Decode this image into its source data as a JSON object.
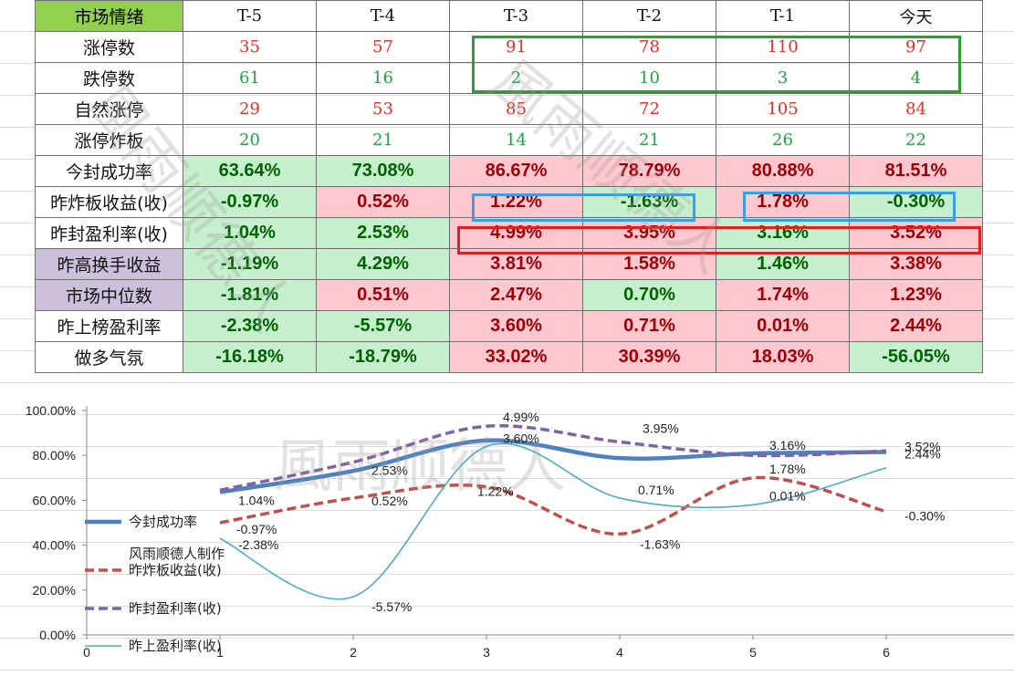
{
  "table": {
    "corner_label": "市场情绪",
    "columns": [
      "T-5",
      "T-4",
      "T-3",
      "T-2",
      "T-1",
      "今天"
    ],
    "rows": [
      {
        "label": "涨停数",
        "values": [
          "35",
          "57",
          "91",
          "78",
          "110",
          "97"
        ]
      },
      {
        "label": "跌停数",
        "values": [
          "61",
          "16",
          "2",
          "10",
          "3",
          "4"
        ]
      },
      {
        "label": "自然涨停",
        "values": [
          "29",
          "53",
          "85",
          "72",
          "105",
          "84"
        ]
      },
      {
        "label": "涨停炸板",
        "values": [
          "20",
          "21",
          "14",
          "21",
          "26",
          "22"
        ]
      },
      {
        "label": "今封成功率",
        "values": [
          "63.64%",
          "73.08%",
          "86.67%",
          "78.79%",
          "80.88%",
          "81.51%"
        ]
      },
      {
        "label": "昨炸板收益(收)",
        "values": [
          "-0.97%",
          "0.52%",
          "1.22%",
          "-1.63%",
          "1.78%",
          "-0.30%"
        ]
      },
      {
        "label": "昨封盈利率(收)",
        "values": [
          "1.04%",
          "2.53%",
          "4.99%",
          "3.95%",
          "3.16%",
          "3.52%"
        ]
      },
      {
        "label": "昨高换手收益",
        "values": [
          "-1.19%",
          "4.29%",
          "3.81%",
          "1.58%",
          "1.46%",
          "3.38%"
        ]
      },
      {
        "label": "市场中位数",
        "values": [
          "-1.81%",
          "0.51%",
          "2.47%",
          "0.70%",
          "1.74%",
          "1.23%"
        ]
      },
      {
        "label": "昨上榜盈利率",
        "values": [
          "-2.38%",
          "-5.57%",
          "3.60%",
          "0.71%",
          "0.01%",
          "2.44%"
        ]
      },
      {
        "label": "做多气氛",
        "values": [
          "-16.18%",
          "-18.79%",
          "33.02%",
          "30.39%",
          "18.03%",
          "-56.05%"
        ]
      }
    ]
  },
  "chart_data": {
    "type": "line",
    "x": [
      1,
      2,
      3,
      4,
      5,
      6
    ],
    "xlim": [
      0,
      7
    ],
    "ylim": [
      0,
      1.0
    ],
    "x_ticks": [
      "0",
      "1",
      "2",
      "3",
      "4",
      "5",
      "6"
    ],
    "y_ticks": [
      "0.00%",
      "20.00%",
      "40.00%",
      "60.00%",
      "80.00%",
      "100.00%"
    ],
    "series": [
      {
        "name": "今封成功率",
        "plot": [
          0.6364,
          0.7308,
          0.8667,
          0.7879,
          0.8088,
          0.8151
        ],
        "labels": [],
        "color": "#4f81bd",
        "style": "solid-thick"
      },
      {
        "name": "昨炸板收益(收)",
        "plot": [
          0.5,
          0.61,
          0.66,
          0.45,
          0.7,
          0.55
        ],
        "labels": [
          "-0.97%",
          "0.52%",
          "1.22%",
          "-1.63%",
          "1.78%",
          "-0.30%"
        ],
        "color": "#c0504d",
        "style": "dashed"
      },
      {
        "name": "昨封盈利率(收)",
        "plot": [
          0.645,
          0.77,
          0.93,
          0.86,
          0.8,
          0.82
        ],
        "labels": [
          "1.04%",
          "2.53%",
          "4.99%",
          "3.95%",
          "3.16%",
          "3.52%"
        ],
        "color": "#8064a2",
        "style": "dashed"
      },
      {
        "name": "昨上盈利率(收)",
        "plot": [
          0.43,
          0.17,
          0.84,
          0.61,
          0.58,
          0.745
        ],
        "labels": [
          "-2.38%",
          "-5.57%",
          "3.60%",
          "0.71%",
          "0.01%",
          "2.44%"
        ],
        "color": "#4bacc6",
        "style": "solid-thin"
      }
    ],
    "legend": {
      "position": "left",
      "maker_note": "风雨顺德人制作"
    }
  },
  "watermark": "風雨顺德人"
}
